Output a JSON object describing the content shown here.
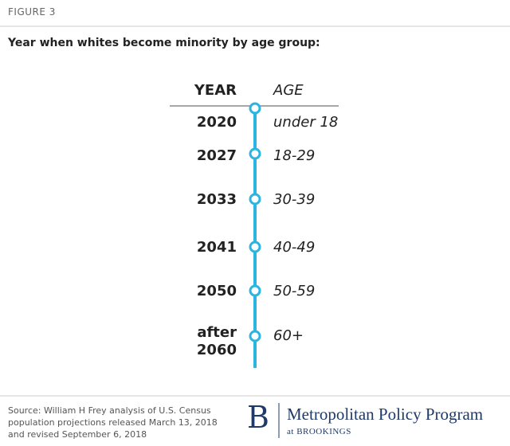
{
  "figure_label": "FIGURE 3",
  "title": "Year when whites become minority by age group:",
  "table": {
    "header": {
      "year": "YEAR",
      "age": "AGE"
    },
    "rows": [
      {
        "year": "2020",
        "age": "under 18"
      },
      {
        "year": "2027",
        "age": "18-29"
      },
      {
        "year": "2033",
        "age": "30-39"
      },
      {
        "year": "2041",
        "age": "40-49"
      },
      {
        "year": "2050",
        "age": "50-59"
      },
      {
        "year": "after 2060",
        "age": "60+"
      }
    ]
  },
  "source": "Source: William H Frey analysis of U.S. Census population projections released March 13, 2018 and revised September 6, 2018",
  "logo": {
    "letter": "B",
    "name": "Metropolitan Policy Program",
    "sub": "at BROOKINGS"
  }
}
